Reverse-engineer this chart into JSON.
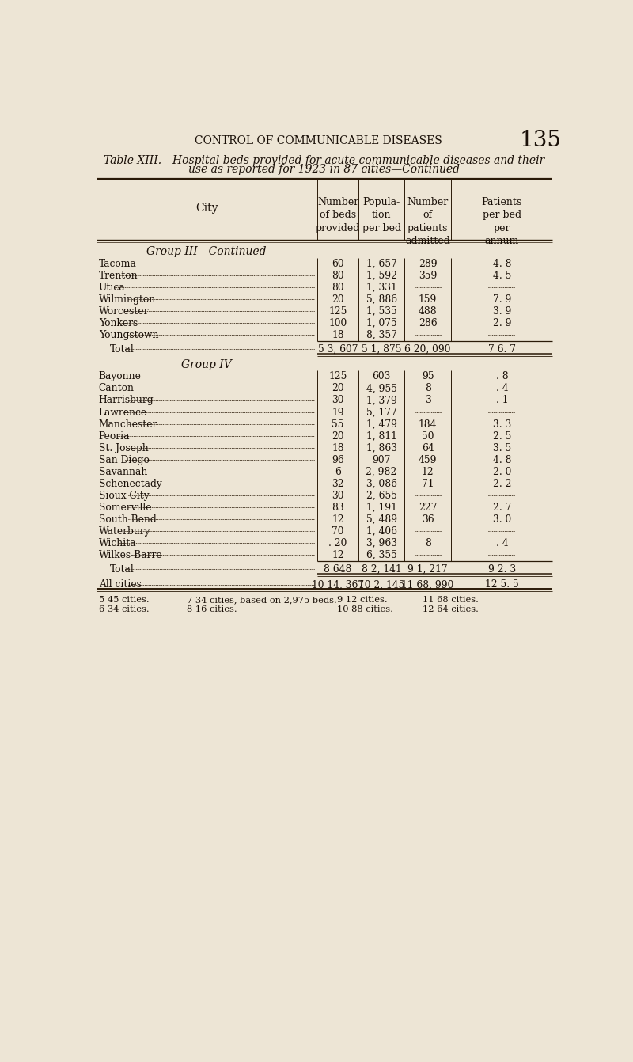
{
  "page_header": "CONTROL OF COMMUNICABLE DISEASES",
  "page_number": "135",
  "title_line1": "Table XIII.—Hospital beds provided for acute communicable diseases and their",
  "title_line2": "use as reported for 1923 in 87 cities—Continued",
  "group3_header": "Group III—Continued",
  "group3_rows": [
    [
      "Tacoma",
      "60",
      "1, 657",
      "289",
      "4. 8"
    ],
    [
      "Trenton",
      "80",
      "1, 592",
      "359",
      "4. 5"
    ],
    [
      "Utica",
      "80",
      "1, 331",
      "",
      ""
    ],
    [
      "Wilmington",
      "20",
      "5, 886",
      "159",
      "7. 9"
    ],
    [
      "Worcester",
      "125",
      "1, 535",
      "488",
      "3. 9"
    ],
    [
      "Yonkers",
      "100",
      "1, 075",
      "286",
      "2. 9"
    ],
    [
      "Youngstown",
      "18",
      "8, 357",
      "",
      ""
    ]
  ],
  "group3_total": [
    "Total",
    "5 3, 607",
    "5 1, 875",
    "6 20, 090",
    "7 6. 7"
  ],
  "group4_header": "Group IV",
  "group4_rows": [
    [
      "Bayonne",
      "125",
      "603",
      "95",
      ". 8"
    ],
    [
      "Canton",
      "20",
      "4, 955",
      "8",
      ". 4"
    ],
    [
      "Harrisburg",
      "30",
      "1, 379",
      "3",
      ". 1"
    ],
    [
      "Lawrence",
      "19",
      "5, 177",
      "",
      ""
    ],
    [
      "Manchester",
      "55",
      "1, 479",
      "184",
      "3. 3"
    ],
    [
      "Peoria",
      "20",
      "1, 811",
      "50",
      "2. 5"
    ],
    [
      "St. Joseph",
      "18",
      "1, 863",
      "64",
      "3. 5"
    ],
    [
      "San Diego",
      "96",
      "907",
      "459",
      "4. 8"
    ],
    [
      "Savannah",
      "6",
      "2, 982",
      "12",
      "2. 0"
    ],
    [
      "Schenectady",
      "32",
      "3, 086",
      "71",
      "2. 2"
    ],
    [
      "Sioux City",
      "30",
      "2, 655",
      "",
      ""
    ],
    [
      "Somerville",
      "83",
      "1, 191",
      "227",
      "2. 7"
    ],
    [
      "South Bend",
      "12",
      "5, 489",
      "36",
      "3. 0"
    ],
    [
      "Waterbury",
      "70",
      "1, 406",
      "",
      ""
    ],
    [
      "Wichita",
      ". 20",
      "3, 963",
      "8",
      ". 4"
    ],
    [
      "Wilkes-Barre",
      "12",
      "6, 355",
      "",
      ""
    ]
  ],
  "group4_total": [
    "Total",
    "8 648",
    "8 2, 141",
    "9 1, 217",
    "9 2. 3"
  ],
  "all_cities": [
    "All cities",
    "10 14, 367",
    "10 2, 145",
    "11 68, 990",
    "12 5. 5"
  ],
  "footnotes_col1": [
    "5 45 cities.",
    "6 34 cities."
  ],
  "footnotes_col2": [
    "7 34 cities, based on 2,975 beds.",
    "8 16 cities."
  ],
  "footnotes_col3": [
    "9 12 cities.",
    "10 88 cities."
  ],
  "footnotes_col4": [
    "11 68 cities.",
    "12 64 cities."
  ],
  "bg_color": "#ede5d5",
  "text_color": "#1a1008",
  "line_color": "#2a1a08"
}
